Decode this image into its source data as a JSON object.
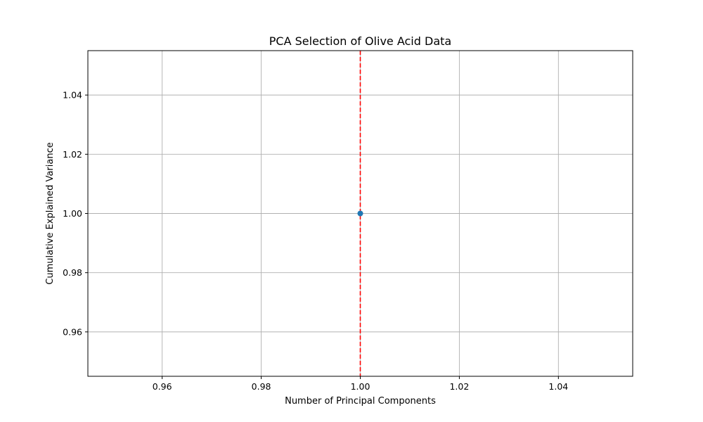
{
  "chart_data": {
    "type": "line",
    "title": "PCA Selection of Olive Acid Data",
    "xlabel": "Number of Principal Components",
    "ylabel": "Cumulative Explained Variance",
    "xlim": [
      0.945,
      1.055
    ],
    "ylim": [
      0.945,
      1.055
    ],
    "x_ticks": [
      0.96,
      0.98,
      1.0,
      1.02,
      1.04
    ],
    "y_ticks": [
      0.96,
      0.98,
      1.0,
      1.02,
      1.04
    ],
    "x_tick_labels": [
      "0.96",
      "0.98",
      "1.00",
      "1.02",
      "1.04"
    ],
    "y_tick_labels": [
      "0.96",
      "0.98",
      "1.00",
      "1.02",
      "1.04"
    ],
    "grid": true,
    "series": [
      {
        "x": [
          1
        ],
        "y": [
          1.0
        ],
        "color": "#1f77b4",
        "marker": "circle"
      }
    ],
    "vlines": [
      {
        "x": 1,
        "color": "#ff0000",
        "style": "dashed"
      }
    ]
  }
}
